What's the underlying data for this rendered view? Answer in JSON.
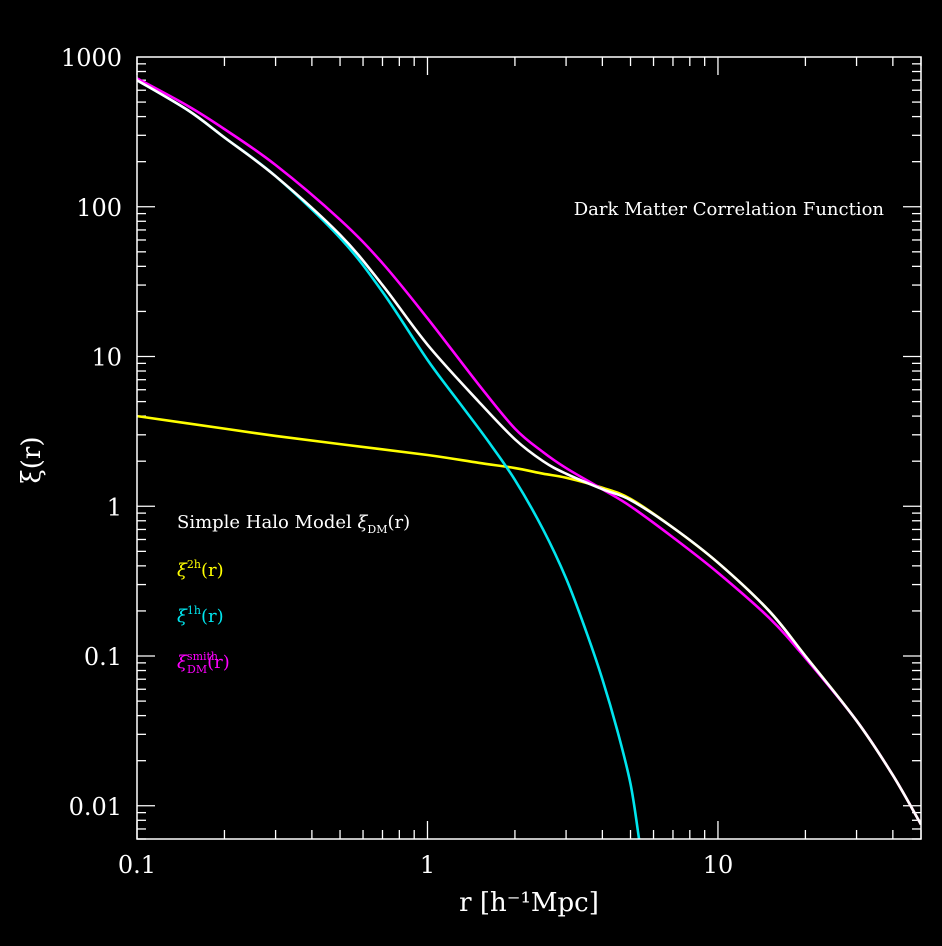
{
  "chart_data": {
    "type": "line",
    "title": "",
    "annotation": "Dark Matter Correlation Function",
    "xlabel": "r [h⁻¹Mpc]",
    "ylabel": "ξ(r)",
    "xscale": "log",
    "yscale": "log",
    "xlim": [
      0.1,
      50
    ],
    "ylim": [
      0.006,
      1000
    ],
    "x_ticks": [
      {
        "value": 0.1,
        "label": "0.1"
      },
      {
        "value": 1,
        "label": "1"
      },
      {
        "value": 10,
        "label": "10"
      }
    ],
    "y_ticks": [
      {
        "value": 1000,
        "label": "1000"
      },
      {
        "value": 100,
        "label": "100"
      },
      {
        "value": 10,
        "label": "10"
      },
      {
        "value": 1,
        "label": "1"
      },
      {
        "value": 0.1,
        "label": "0.1"
      },
      {
        "value": 0.01,
        "label": "0.01"
      }
    ],
    "grid": false,
    "background": "#000000",
    "axis_color": "#ffffff",
    "legend": {
      "placement": "left-middle",
      "entries": [
        {
          "text": "Simple Halo Model",
          "symbol": "ξ",
          "sub": "DM",
          "sup": "",
          "arg": "(r)",
          "color": "#ffffff"
        },
        {
          "text": "",
          "symbol": "ξ",
          "sub": "",
          "sup": "2h",
          "arg": "(r)",
          "color": "#ffff00"
        },
        {
          "text": "",
          "symbol": "ξ",
          "sub": "",
          "sup": "1h",
          "arg": "(r)",
          "color": "#00e5ee"
        },
        {
          "text": "",
          "symbol": "ξ",
          "sub": "DM",
          "sup": "smith",
          "arg": "(r)",
          "color": "#ff00ff"
        }
      ]
    },
    "series": [
      {
        "name": "Simple Halo Model ξ_DM(r)",
        "color": "#ffffff",
        "points": [
          [
            0.1,
            700
          ],
          [
            0.15,
            440
          ],
          [
            0.2,
            290
          ],
          [
            0.3,
            160
          ],
          [
            0.5,
            65
          ],
          [
            0.7,
            30
          ],
          [
            1.0,
            12
          ],
          [
            1.5,
            5.0
          ],
          [
            2.0,
            2.8
          ],
          [
            2.5,
            2.0
          ],
          [
            3.0,
            1.65
          ],
          [
            4.0,
            1.3
          ],
          [
            5.0,
            1.1
          ],
          [
            7.0,
            0.72
          ],
          [
            10.0,
            0.42
          ],
          [
            15.0,
            0.2
          ],
          [
            20.0,
            0.1
          ],
          [
            30.0,
            0.037
          ],
          [
            40.0,
            0.016
          ],
          [
            50.0,
            0.0075
          ]
        ]
      },
      {
        "name": "ξ^2h(r)",
        "color": "#ffff00",
        "points": [
          [
            0.1,
            4.0
          ],
          [
            0.2,
            3.3
          ],
          [
            0.3,
            2.95
          ],
          [
            0.5,
            2.6
          ],
          [
            1.0,
            2.2
          ],
          [
            1.5,
            1.95
          ],
          [
            2.0,
            1.8
          ],
          [
            2.5,
            1.65
          ],
          [
            3.0,
            1.55
          ],
          [
            4.0,
            1.33
          ],
          [
            5.0,
            1.12
          ],
          [
            7.0,
            0.72
          ],
          [
            10.0,
            0.42
          ],
          [
            15.0,
            0.2
          ],
          [
            20.0,
            0.1
          ],
          [
            30.0,
            0.037
          ],
          [
            40.0,
            0.016
          ],
          [
            50.0,
            0.0075
          ]
        ]
      },
      {
        "name": "ξ^1h(r)",
        "color": "#00e5ee",
        "points": [
          [
            0.1,
            700
          ],
          [
            0.15,
            440
          ],
          [
            0.2,
            290
          ],
          [
            0.3,
            160
          ],
          [
            0.5,
            62
          ],
          [
            0.7,
            27
          ],
          [
            1.0,
            9.5
          ],
          [
            1.3,
            4.8
          ],
          [
            1.6,
            2.8
          ],
          [
            2.0,
            1.5
          ],
          [
            2.5,
            0.7
          ],
          [
            3.0,
            0.33
          ],
          [
            3.5,
            0.15
          ],
          [
            4.0,
            0.07
          ],
          [
            4.5,
            0.032
          ],
          [
            5.0,
            0.014
          ],
          [
            5.35,
            0.006
          ]
        ]
      },
      {
        "name": "ξ_DM^smith(r)",
        "color": "#ff00ff",
        "points": [
          [
            0.1,
            720
          ],
          [
            0.15,
            470
          ],
          [
            0.2,
            330
          ],
          [
            0.3,
            190
          ],
          [
            0.5,
            82
          ],
          [
            0.7,
            42
          ],
          [
            1.0,
            18
          ],
          [
            1.5,
            6.5
          ],
          [
            2.0,
            3.3
          ],
          [
            2.5,
            2.3
          ],
          [
            3.0,
            1.8
          ],
          [
            4.0,
            1.3
          ],
          [
            5.0,
            1.0
          ],
          [
            7.0,
            0.62
          ],
          [
            10.0,
            0.36
          ],
          [
            15.0,
            0.18
          ],
          [
            20.0,
            0.097
          ],
          [
            30.0,
            0.037
          ],
          [
            40.0,
            0.016
          ],
          [
            50.0,
            0.0075
          ]
        ]
      }
    ]
  }
}
